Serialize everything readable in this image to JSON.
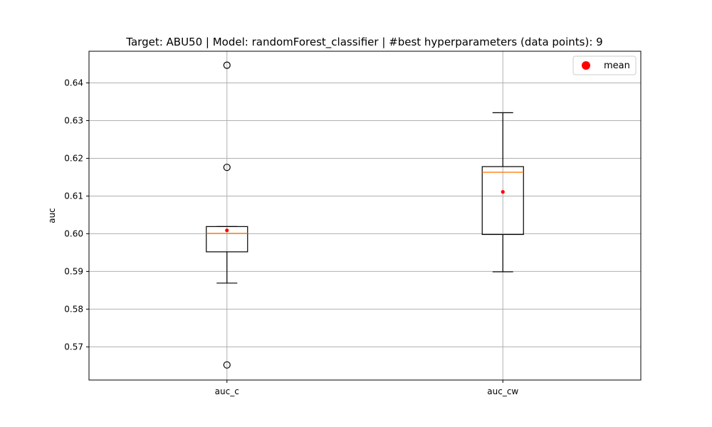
{
  "chart_data": {
    "type": "box",
    "title": "Target: ABU50 | Model: randomForest_classifier | #best hyperparameters (data points): 9",
    "xlabel": "",
    "ylabel": "auc",
    "categories": [
      "auc_c",
      "auc_cw"
    ],
    "ylim": [
      0.5612,
      0.6484
    ],
    "yticks": [
      0.57,
      0.58,
      0.59,
      0.6,
      0.61,
      0.62,
      0.63,
      0.64
    ],
    "ytick_labels": [
      "0.57",
      "0.58",
      "0.59",
      "0.60",
      "0.61",
      "0.62",
      "0.63",
      "0.64"
    ],
    "grid": true,
    "boxes": [
      {
        "label": "auc_c",
        "whisker_low": 0.5869,
        "q1": 0.5952,
        "median": 0.6001,
        "q3": 0.6019,
        "whisker_high": 0.6019,
        "mean": 0.6009,
        "outliers": [
          0.6447,
          0.6176,
          0.5652
        ]
      },
      {
        "label": "auc_cw",
        "whisker_low": 0.5899,
        "q1": 0.5998,
        "median": 0.6163,
        "q3": 0.6178,
        "whisker_high": 0.6321,
        "mean": 0.6111,
        "outliers": []
      }
    ],
    "legend": {
      "position": "top-right",
      "entries": [
        {
          "name": "mean",
          "color": "#ff0000",
          "marker": "dot"
        }
      ]
    },
    "colors": {
      "box": "#000000",
      "median": "#ff7f0e",
      "mean": "#ff0000",
      "grid": "#b0b0b0"
    }
  }
}
